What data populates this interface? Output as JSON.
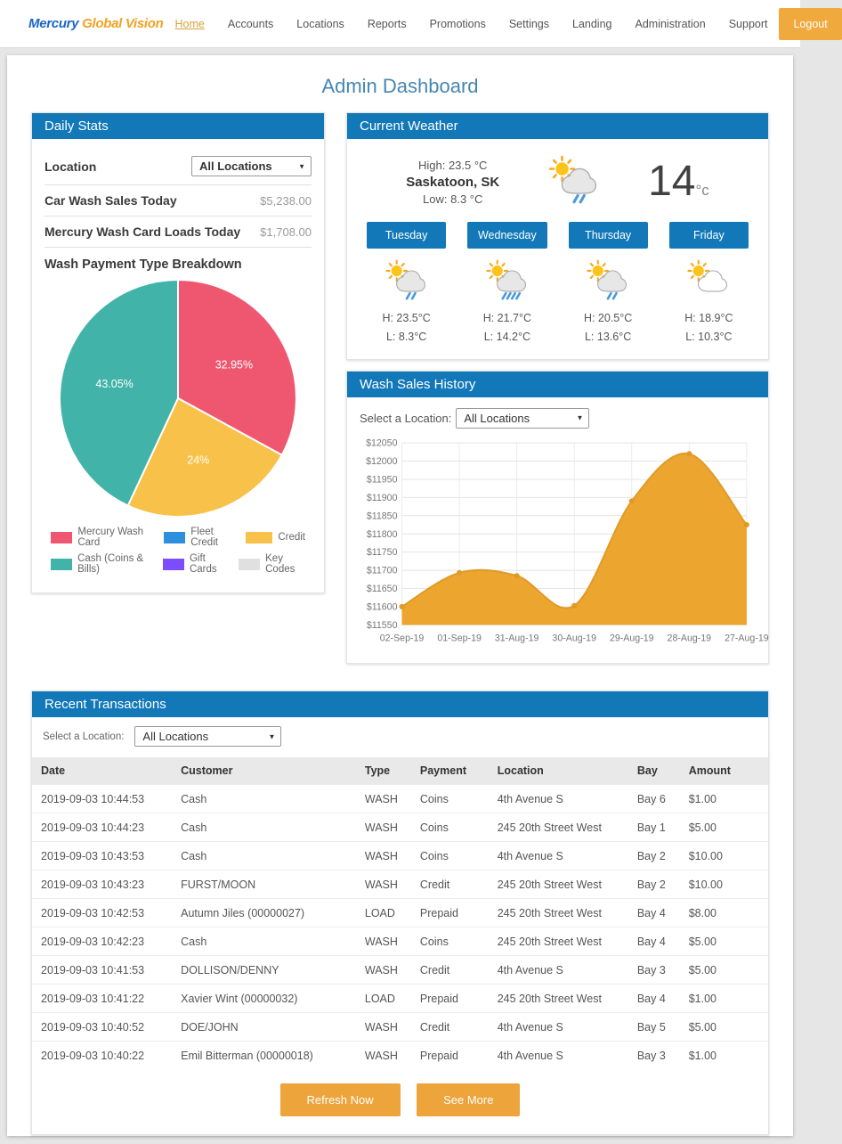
{
  "nav": {
    "logo_part1": "Mercury",
    "logo_part2": "Global Vision",
    "items": [
      {
        "label": "Home",
        "active": true
      },
      {
        "label": "Accounts",
        "active": false
      },
      {
        "label": "Locations",
        "active": false
      },
      {
        "label": "Reports",
        "active": false
      },
      {
        "label": "Promotions",
        "active": false
      },
      {
        "label": "Settings",
        "active": false
      },
      {
        "label": "Landing",
        "active": false
      },
      {
        "label": "Administration",
        "active": false
      },
      {
        "label": "Support",
        "active": false
      }
    ],
    "logout_label": "Logout"
  },
  "page_title": "Admin Dashboard",
  "daily_stats": {
    "header": "Daily Stats",
    "location_label": "Location",
    "location_value": "All Locations",
    "rows": [
      {
        "label": "Car Wash Sales Today",
        "value": "$5,238.00"
      },
      {
        "label": "Mercury Wash Card Loads Today",
        "value": "$1,708.00"
      }
    ],
    "breakdown_title": "Wash Payment Type Breakdown"
  },
  "weather": {
    "header": "Current Weather",
    "high_label": "High: 23.5 °C",
    "city": "Saskatoon, SK",
    "low_label": "Low: 8.3 °C",
    "current_temp": "14",
    "temp_unit": "°c",
    "current_icon": "sun-cloud-light-rain-icon",
    "forecast": [
      {
        "day": "Tuesday",
        "high": "H: 23.5°C",
        "low": "L: 8.3°C",
        "icon": "sun-cloud-light-rain-icon"
      },
      {
        "day": "Wednesday",
        "high": "H: 21.7°C",
        "low": "L: 14.2°C",
        "icon": "sun-cloud-heavy-rain-icon"
      },
      {
        "day": "Thursday",
        "high": "H: 20.5°C",
        "low": "L: 13.6°C",
        "icon": "sun-cloud-light-rain-icon"
      },
      {
        "day": "Friday",
        "high": "H: 18.9°C",
        "low": "L: 10.3°C",
        "icon": "sun-cloud-icon"
      }
    ]
  },
  "wash_sales": {
    "header": "Wash Sales History",
    "select_label": "Select a Location:",
    "select_value": "All Locations"
  },
  "transactions": {
    "header": "Recent Transactions",
    "select_label": "Select a Location:",
    "select_value": "All Locations",
    "columns": [
      "Date",
      "Customer",
      "Type",
      "Payment",
      "Location",
      "Bay",
      "Amount"
    ],
    "rows": [
      [
        "2019-09-03 10:44:53",
        "Cash",
        "WASH",
        "Coins",
        "4th Avenue S",
        "Bay 6",
        "$1.00"
      ],
      [
        "2019-09-03 10:44:23",
        "Cash",
        "WASH",
        "Coins",
        "245 20th Street West",
        "Bay 1",
        "$5.00"
      ],
      [
        "2019-09-03 10:43:53",
        "Cash",
        "WASH",
        "Coins",
        "4th Avenue S",
        "Bay 2",
        "$10.00"
      ],
      [
        "2019-09-03 10:43:23",
        "FURST/MOON",
        "WASH",
        "Credit",
        "245 20th Street West",
        "Bay 2",
        "$10.00"
      ],
      [
        "2019-09-03 10:42:53",
        "Autumn Jiles (00000027)",
        "LOAD",
        "Prepaid",
        "245 20th Street West",
        "Bay 4",
        "$8.00"
      ],
      [
        "2019-09-03 10:42:23",
        "Cash",
        "WASH",
        "Coins",
        "245 20th Street West",
        "Bay 4",
        "$5.00"
      ],
      [
        "2019-09-03 10:41:53",
        "DOLLISON/DENNY",
        "WASH",
        "Credit",
        "4th Avenue S",
        "Bay 3",
        "$5.00"
      ],
      [
        "2019-09-03 10:41:22",
        "Xavier Wint (00000032)",
        "LOAD",
        "Prepaid",
        "245 20th Street West",
        "Bay 4",
        "$1.00"
      ],
      [
        "2019-09-03 10:40:52",
        "DOE/JOHN",
        "WASH",
        "Credit",
        "4th Avenue S",
        "Bay 5",
        "$5.00"
      ],
      [
        "2019-09-03 10:40:22",
        "Emil Bitterman (00000018)",
        "WASH",
        "Prepaid",
        "4th Avenue S",
        "Bay 3",
        "$1.00"
      ]
    ],
    "refresh_label": "Refresh Now",
    "see_more_label": "See More"
  },
  "chart_data": [
    {
      "type": "pie",
      "title": "Wash Payment Type Breakdown",
      "slices": [
        {
          "label": "Mercury Wash Card",
          "value": 32.95,
          "text": "32.95%",
          "color": "#EF5771"
        },
        {
          "label": "Credit",
          "value": 24.0,
          "text": "24%",
          "color": "#F8C24A"
        },
        {
          "label": "Cash (Coins & Bills)",
          "value": 43.05,
          "text": "43.05%",
          "color": "#41B3A9"
        }
      ],
      "legend": [
        {
          "label": "Mercury Wash Card",
          "color": "#EF5771"
        },
        {
          "label": "Fleet Credit",
          "color": "#2E8FDD"
        },
        {
          "label": "Credit",
          "color": "#F8C24A"
        },
        {
          "label": "Cash (Coins & Bills)",
          "color": "#41B3A9"
        },
        {
          "label": "Gift Cards",
          "color": "#7C4DFF"
        },
        {
          "label": "Key Codes",
          "color": "#E0E0E0"
        }
      ],
      "legend_position": "bottom"
    },
    {
      "type": "area",
      "title": "Wash Sales History",
      "categories": [
        "02-Sep-19",
        "01-Sep-19",
        "31-Aug-19",
        "30-Aug-19",
        "29-Aug-19",
        "28-Aug-19",
        "27-Aug-19"
      ],
      "values": [
        11600,
        11693,
        11685,
        11603,
        11890,
        12020,
        11825
      ],
      "ylim": [
        11550,
        12050
      ],
      "ytick_step": 50,
      "ytick_prefix": "$",
      "grid": true,
      "fill_color": "#ECA52F",
      "stroke_color": "#E09B26"
    }
  ]
}
